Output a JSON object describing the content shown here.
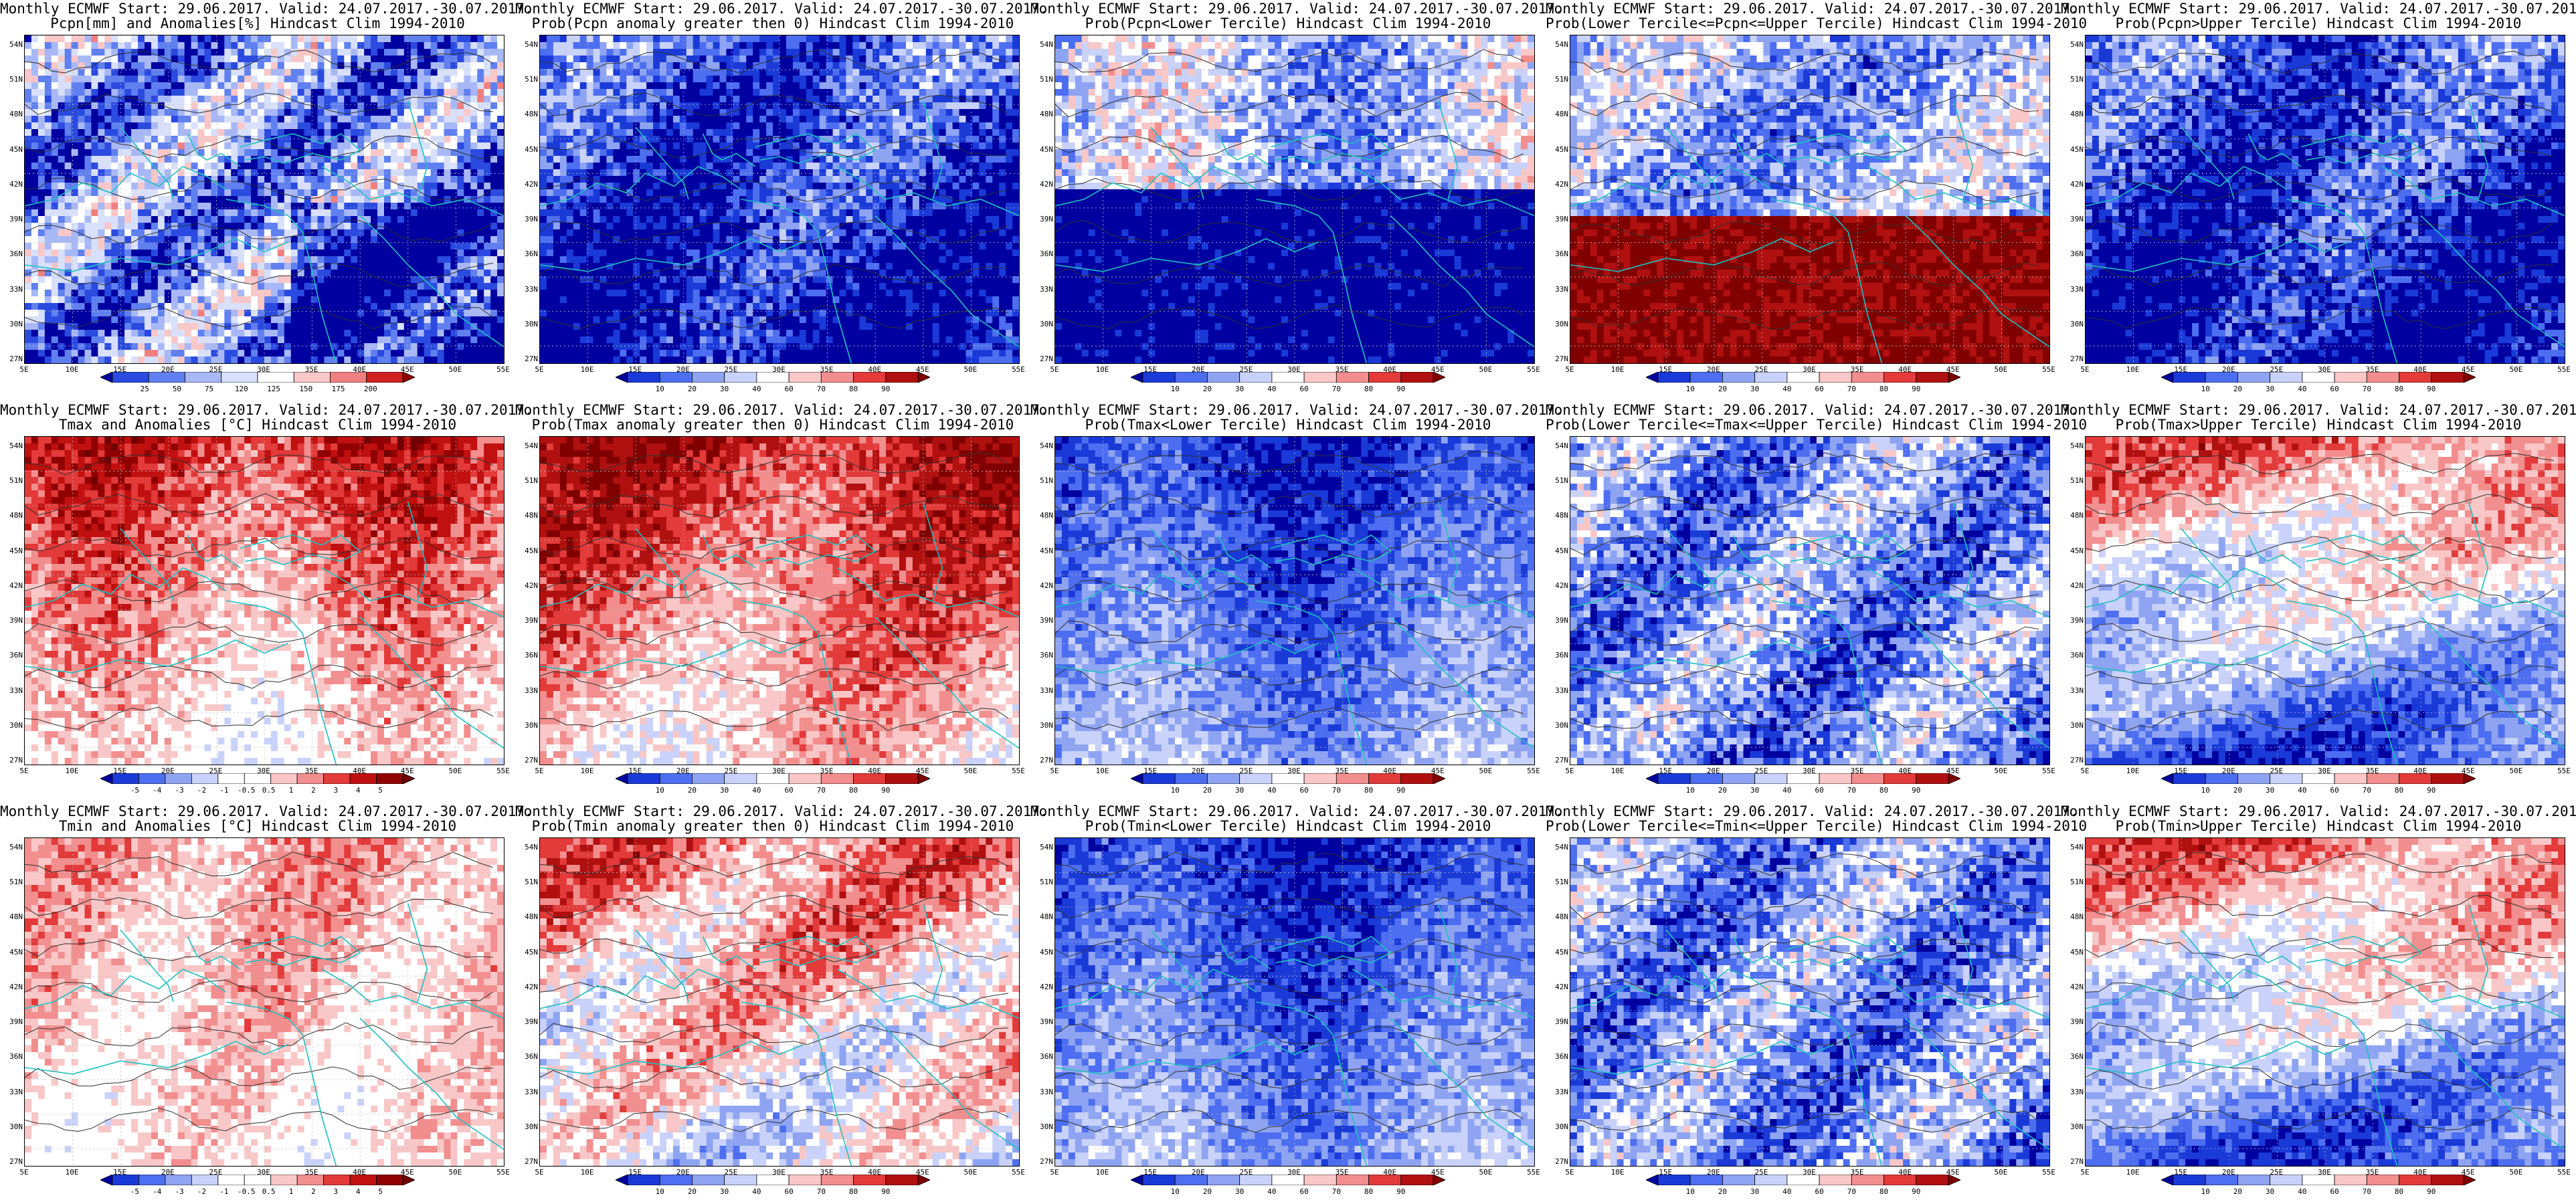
{
  "panels": [
    {
      "id": "p00",
      "line1": "Monthly ECMWF Start: 29.06.2017. Valid: 24.07.2017.-30.07.2017.",
      "line2": "Pcpn[mm] and Anomalies[%] Hindcast Clim 1994-2010",
      "scale": "pcpn_anom",
      "field": "anom_pcpn",
      "levels": [
        "25",
        "50",
        "75",
        "120",
        "125",
        "150",
        "175",
        "200"
      ]
    },
    {
      "id": "p01",
      "line1": "Monthly ECMWF Start: 29.06.2017. Valid: 24.07.2017.-30.07.2017.",
      "line2": "Prob(Pcpn anomaly greater then 0) Hindcast Clim 1994-2010",
      "scale": "prob",
      "field": "low_blue",
      "levels": [
        "10",
        "20",
        "30",
        "40",
        "60",
        "70",
        "80",
        "90"
      ]
    },
    {
      "id": "p02",
      "line1": "Monthly ECMWF Start: 29.06.2017. Valid: 24.07.2017.-30.07.2017.",
      "line2": "Prob(Pcpn<Lower Tercile) Hindcast Clim 1994-2010",
      "scale": "prob",
      "field": "deep_blue_south",
      "levels": [
        "10",
        "20",
        "30",
        "40",
        "60",
        "70",
        "80",
        "90"
      ]
    },
    {
      "id": "p03",
      "line1": "Monthly ECMWF Start: 29.06.2017. Valid: 24.07.2017.-30.07.2017.",
      "line2": "Prob(Lower Tercile<=Pcpn<=Upper Tercile) Hindcast Clim 1994-2010",
      "scale": "prob",
      "field": "red_south",
      "levels": [
        "10",
        "20",
        "30",
        "40",
        "60",
        "70",
        "80",
        "90"
      ]
    },
    {
      "id": "p04",
      "line1": "Monthly ECMWF Start: 29.06.2017. Valid: 24.07.2017.-30.07.2017.",
      "line2": "Prob(Pcpn>Upper Tercile) Hindcast Clim 1994-2010",
      "scale": "prob",
      "field": "low_blue",
      "levels": [
        "10",
        "20",
        "30",
        "40",
        "60",
        "70",
        "80",
        "90"
      ]
    },
    {
      "id": "p10",
      "line1": "Monthly ECMWF Start: 29.06.2017. Valid: 24.07.2017.-30.07.2017.",
      "line2": "Tmax and Anomalies [°C] Hindcast Clim 1994-2010",
      "scale": "temp_anom",
      "field": "warm_north",
      "levels": [
        "-5",
        "-4",
        "-3",
        "-2",
        "-1",
        "-0.5",
        "0.5",
        "1",
        "2",
        "3",
        "4",
        "5"
      ]
    },
    {
      "id": "p11",
      "line1": "Monthly ECMWF Start: 29.06.2017. Valid: 24.07.2017.-30.07.2017.",
      "line2": "Prob(Tmax anomaly greater then 0) Hindcast Clim 1994-2010",
      "scale": "prob",
      "field": "hot_north",
      "levels": [
        "10",
        "20",
        "30",
        "40",
        "60",
        "70",
        "80",
        "90"
      ]
    },
    {
      "id": "p12",
      "line1": "Monthly ECMWF Start: 29.06.2017. Valid: 24.07.2017.-30.07.2017.",
      "line2": "Prob(Tmax<Lower Tercile) Hindcast Clim 1994-2010",
      "scale": "prob",
      "field": "blue_north",
      "levels": [
        "10",
        "20",
        "30",
        "40",
        "60",
        "70",
        "80",
        "90"
      ]
    },
    {
      "id": "p13",
      "line1": "Monthly ECMWF Start: 29.06.2017. Valid: 24.07.2017.-30.07.2017.",
      "line2": "Prob(Lower Tercile<=Tmax<=Upper Tercile) Hindcast Clim 1994-2010",
      "scale": "prob",
      "field": "mixed_blue",
      "levels": [
        "10",
        "20",
        "30",
        "40",
        "60",
        "70",
        "80",
        "90"
      ]
    },
    {
      "id": "p14",
      "line1": "Monthly ECMWF Start: 29.06.2017. Valid: 24.07.2017.-30.07.2017.",
      "line2": "Prob(Tmax>Upper Tercile) Hindcast Clim 1994-2010",
      "scale": "prob",
      "field": "red_north_blue_south",
      "levels": [
        "10",
        "20",
        "30",
        "40",
        "60",
        "70",
        "80",
        "90"
      ]
    },
    {
      "id": "p20",
      "line1": "Monthly ECMWF Start: 29.06.2017. Valid: 24.07.2017.-30.07.2017.",
      "line2": "Tmin and Anomalies [°C] Hindcast Clim 1994-2010",
      "scale": "temp_anom",
      "field": "pale_warm",
      "levels": [
        "-5",
        "-4",
        "-3",
        "-2",
        "-1",
        "-0.5",
        "0.5",
        "1",
        "2",
        "3",
        "4",
        "5"
      ]
    },
    {
      "id": "p21",
      "line1": "Monthly ECMWF Start: 29.06.2017. Valid: 24.07.2017.-30.07.2017.",
      "line2": "Prob(Tmin anomaly greater then 0) Hindcast Clim 1994-2010",
      "scale": "prob",
      "field": "warm_patchy",
      "levels": [
        "10",
        "20",
        "30",
        "40",
        "60",
        "70",
        "80",
        "90"
      ]
    },
    {
      "id": "p22",
      "line1": "Monthly ECMWF Start: 29.06.2017. Valid: 24.07.2017.-30.07.2017.",
      "line2": "Prob(Tmin<Lower Tercile) Hindcast Clim 1994-2010",
      "scale": "prob",
      "field": "blue_north",
      "levels": [
        "10",
        "20",
        "30",
        "40",
        "60",
        "70",
        "80",
        "90"
      ]
    },
    {
      "id": "p23",
      "line1": "Monthly ECMWF Start: 29.06.2017. Valid: 24.07.2017.-30.07.2017.",
      "line2": "Prob(Lower Tercile<=Tmin<=Upper Tercile) Hindcast Clim 1994-2010",
      "scale": "prob",
      "field": "mixed_blue",
      "levels": [
        "10",
        "20",
        "30",
        "40",
        "60",
        "70",
        "80",
        "90"
      ]
    },
    {
      "id": "p24",
      "line1": "Monthly ECMWF Start: 29.06.2017. Valid: 24.07.2017.-30.07.2017.",
      "line2": "Prob(Tmin>Upper Tercile) Hindcast Clim 1994-2010",
      "scale": "prob",
      "field": "red_north_blue_south",
      "levels": [
        "10",
        "20",
        "30",
        "40",
        "60",
        "70",
        "80",
        "90"
      ]
    }
  ],
  "axes": {
    "lat_labels": [
      "54N",
      "51N",
      "48N",
      "45N",
      "42N",
      "39N",
      "36N",
      "33N",
      "30N",
      "27N"
    ],
    "lon_labels": [
      "5E",
      "10E",
      "15E",
      "20E",
      "25E",
      "30E",
      "35E",
      "40E",
      "45E",
      "50E",
      "55E"
    ]
  },
  "colors": {
    "prob": [
      "#0000a0",
      "#1a3ad8",
      "#4d6ef0",
      "#8ea4f2",
      "#c9d2fa",
      "#ffffff",
      "#f9c7c7",
      "#f28e8e",
      "#e33a3a",
      "#b01010",
      "#800000"
    ],
    "temp_anom": [
      "#0000a0",
      "#1a3ad8",
      "#4d6ef0",
      "#8ea4f2",
      "#c9d2fa",
      "#ffffff",
      "#ffffff",
      "#f9c7c7",
      "#f28e8e",
      "#e33a3a",
      "#c01010",
      "#900000",
      "#700000"
    ],
    "pcpn_anom": [
      "#0000a0",
      "#2a4ae0",
      "#6080f0",
      "#a8b8f6",
      "#d8e0fb",
      "#ffffff",
      "#f9c7c7",
      "#f08080",
      "#d02020",
      "#900000"
    ],
    "coast": "#20c0c0",
    "contour": "#303030"
  }
}
